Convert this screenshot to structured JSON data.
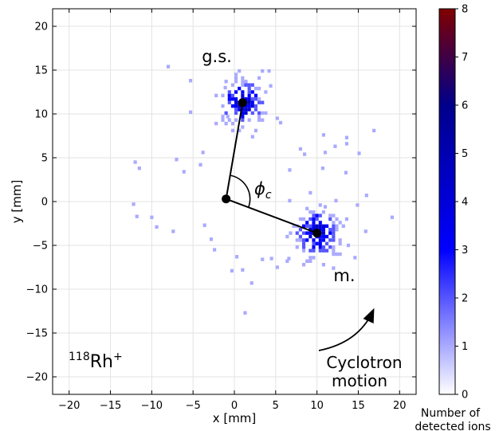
{
  "chart_data": {
    "type": "heatmap",
    "xlabel": "x [mm]",
    "ylabel": "y [mm]",
    "xlim": [
      -22,
      22
    ],
    "ylim": [
      -22,
      22
    ],
    "xticks": [
      -20,
      -15,
      -10,
      -5,
      0,
      5,
      10,
      15,
      20
    ],
    "yticks": [
      -20,
      -15,
      -10,
      -5,
      0,
      5,
      10,
      15,
      20
    ],
    "xtick_labels": [
      "−20",
      "−15",
      "−10",
      "−5",
      "0",
      "5",
      "10",
      "15",
      "20"
    ],
    "ytick_labels": [
      "−20",
      "−15",
      "−10",
      "−5",
      "0",
      "5",
      "10",
      "15",
      "20"
    ],
    "grid": true,
    "colorbar": {
      "label_line1": "Number of",
      "label_line2": "detected ions",
      "min": 0,
      "max": 8,
      "ticks": [
        0,
        1,
        2,
        3,
        4,
        5,
        6,
        7,
        8
      ],
      "tick_labels": [
        "0",
        "1",
        "2",
        "3",
        "4",
        "5",
        "6",
        "7",
        "8"
      ],
      "colormap": [
        "#ffffff",
        "#0000ff",
        "#00008b",
        "#800000"
      ]
    },
    "clusters": [
      {
        "label": "g.s.",
        "center": [
          1.0,
          11.3
        ],
        "peak_counts": 5
      },
      {
        "label": "m.",
        "center": [
          10.0,
          -3.6
        ],
        "peak_counts": 5
      }
    ],
    "points": {
      "center": [
        -1.0,
        0.3
      ],
      "ground_state": [
        1.0,
        11.3
      ],
      "isomer": [
        10.0,
        -3.6
      ]
    },
    "scattered_counts": [
      [
        -8,
        15.4,
        1
      ],
      [
        -5.3,
        13.8,
        1
      ],
      [
        -5.3,
        10.2,
        1
      ],
      [
        -3.8,
        5.6,
        1
      ],
      [
        -4.1,
        4.2,
        1
      ],
      [
        -6.1,
        3.4,
        1
      ],
      [
        -7,
        4.8,
        1
      ],
      [
        -12,
        4.5,
        1
      ],
      [
        -11.5,
        3.8,
        1
      ],
      [
        -12.2,
        -0.3,
        1
      ],
      [
        -11.8,
        -1.7,
        1
      ],
      [
        -10,
        -1.8,
        1
      ],
      [
        -9.4,
        -2.9,
        1
      ],
      [
        -7.4,
        -3.4,
        1
      ],
      [
        -3.6,
        -2.7,
        1
      ],
      [
        -2.8,
        -4.3,
        1
      ],
      [
        -2.4,
        -5.5,
        1
      ],
      [
        0.3,
        -6.3,
        1
      ],
      [
        1.0,
        -7.8,
        1
      ],
      [
        -0.3,
        -7.9,
        1
      ],
      [
        2.1,
        -9.3,
        1
      ],
      [
        1.3,
        -12.7,
        1
      ],
      [
        4.5,
        -6.5,
        1
      ],
      [
        3.4,
        -6.6,
        1
      ],
      [
        5.2,
        -7.5,
        1
      ],
      [
        8.4,
        -7.2,
        1
      ],
      [
        6.6,
        -6.5,
        1
      ],
      [
        6.7,
        3.6,
        1
      ],
      [
        8.0,
        6.0,
        1
      ],
      [
        8.5,
        5.4,
        1
      ],
      [
        10.8,
        7.6,
        1
      ],
      [
        11.0,
        5.6,
        1
      ],
      [
        10.7,
        3.8,
        1
      ],
      [
        12.2,
        6.3,
        1
      ],
      [
        13.6,
        7.3,
        1
      ],
      [
        13.6,
        6.6,
        1
      ],
      [
        13.5,
        3.3,
        1
      ],
      [
        15.1,
        5.5,
        1
      ],
      [
        16.0,
        0.7,
        1
      ],
      [
        14.9,
        -0.4,
        1
      ],
      [
        16.9,
        8.1,
        1
      ],
      [
        19.1,
        -1.8,
        1
      ],
      [
        15.9,
        -3.4,
        1
      ],
      [
        13.8,
        -5.0,
        1
      ],
      [
        14.6,
        -6.4,
        1
      ],
      [
        12.0,
        -7.6,
        1
      ],
      [
        9.2,
        1.0,
        1
      ],
      [
        6.7,
        0.1,
        1
      ],
      [
        12.3,
        0.1,
        1
      ],
      [
        11.0,
        -0.6,
        1
      ],
      [
        5.2,
        9.5,
        1
      ],
      [
        5.6,
        9.0,
        1
      ],
      [
        4.4,
        13.2,
        1
      ],
      [
        -1.1,
        13.0,
        1
      ],
      [
        2.2,
        7.4,
        1
      ],
      [
        -0.8,
        9.7,
        1
      ]
    ],
    "annotations": {
      "gs_label": "g.s.",
      "isomer_label": "m.",
      "phi_symbol": "ϕ",
      "phi_subscript": "c",
      "isotope_mass": "118",
      "isotope_symbol": "Rh",
      "isotope_charge": "+",
      "cyclotron_line1": "Cyclotron",
      "cyclotron_line2": "motion"
    }
  }
}
